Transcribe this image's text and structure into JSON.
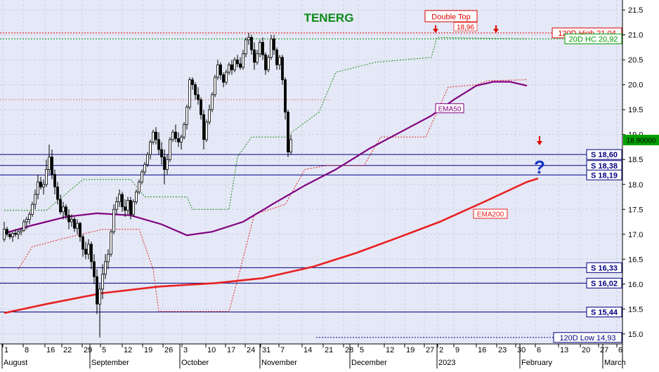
{
  "chart_data": {
    "type": "candlestick",
    "title": "TENERG",
    "last_price_label": "18.90000",
    "y_axis": {
      "min": 14.8,
      "max": 21.7,
      "ticks": [
        "15.0",
        "15.5",
        "16.0",
        "16.5",
        "17.0",
        "17.5",
        "18.0",
        "18.5",
        "19.0",
        "19.5",
        "20.0",
        "20.5",
        "21.0",
        "21.5"
      ]
    },
    "x_axis": {
      "tick_labels": [
        "1",
        "8",
        "16",
        "22",
        "29",
        "5",
        "12",
        "19",
        "26",
        "3",
        "10",
        "17",
        "24",
        "31",
        "7",
        "14",
        "21",
        "28",
        "5",
        "12",
        "19",
        "27",
        "2",
        "9",
        "16",
        "23",
        "30",
        "6",
        "13",
        "20",
        "27",
        "6"
      ],
      "month_labels": [
        "August",
        "September",
        "October",
        "November",
        "December",
        "2023",
        "February",
        "March"
      ]
    },
    "levels": [
      {
        "label": "120D High 21,04",
        "value": 21.04,
        "style": "dotted",
        "color": "#dd0000"
      },
      {
        "label": "20D HC 20,92",
        "value": 20.92,
        "style": "dotted",
        "color": "#009900"
      },
      {
        "label": "S 18,60",
        "value": 18.6,
        "style": "solid",
        "color": "#000080"
      },
      {
        "label": "S 18,38",
        "value": 18.38,
        "style": "solid",
        "color": "#000080"
      },
      {
        "label": "S 18,19",
        "value": 18.19,
        "style": "solid",
        "color": "#000080"
      },
      {
        "label": "S 16,33",
        "value": 16.33,
        "style": "solid",
        "color": "#000080"
      },
      {
        "label": "S 16,02",
        "value": 16.02,
        "style": "solid",
        "color": "#000080"
      },
      {
        "label": "S 15,44",
        "value": 15.44,
        "style": "solid",
        "color": "#000080"
      },
      {
        "label": "120D Low 14,93",
        "value": 14.93,
        "style": "dotted",
        "color": "#000080"
      }
    ],
    "annotations": {
      "double_top_label": "Double Top",
      "double_top_value": "18,96",
      "ema50_label": "EMA50",
      "ema200_label": "EMA200",
      "question_mark": "?"
    },
    "series": [
      {
        "name": "EMA50",
        "color": "#800080",
        "values": [
          [
            0,
            17.02
          ],
          [
            10,
            17.18
          ],
          [
            22,
            17.35
          ],
          [
            33,
            17.42
          ],
          [
            45,
            17.38
          ],
          [
            56,
            17.2
          ],
          [
            65,
            16.98
          ],
          [
            74,
            17.05
          ],
          [
            85,
            17.25
          ],
          [
            96,
            17.62
          ],
          [
            107,
            17.98
          ],
          [
            118,
            18.3
          ],
          [
            130,
            18.72
          ],
          [
            141,
            19.05
          ],
          [
            152,
            19.38
          ],
          [
            160,
            19.7
          ],
          [
            168,
            19.98
          ],
          [
            174,
            20.06
          ],
          [
            180,
            20.06
          ],
          [
            183,
            20.02
          ],
          [
            186,
            19.98
          ]
        ]
      },
      {
        "name": "EMA200",
        "color": "#e82020",
        "values": [
          [
            0,
            15.42
          ],
          [
            15,
            15.6
          ],
          [
            35,
            15.82
          ],
          [
            55,
            15.95
          ],
          [
            75,
            16.02
          ],
          [
            92,
            16.12
          ],
          [
            110,
            16.35
          ],
          [
            125,
            16.62
          ],
          [
            140,
            16.93
          ],
          [
            155,
            17.25
          ],
          [
            170,
            17.63
          ],
          [
            186,
            18.05
          ],
          [
            190,
            18.12
          ]
        ]
      }
    ],
    "trail_green": [
      [
        0,
        17.48
      ],
      [
        15,
        17.48
      ],
      [
        28,
        18.1
      ],
      [
        45,
        18.1
      ],
      [
        50,
        17.75
      ],
      [
        65,
        17.75
      ],
      [
        67,
        17.5
      ],
      [
        80,
        17.5
      ],
      [
        83,
        18.55
      ],
      [
        88,
        18.95
      ],
      [
        100,
        18.95
      ],
      [
        112,
        19.45
      ],
      [
        118,
        20.25
      ],
      [
        132,
        20.45
      ],
      [
        152,
        20.55
      ],
      [
        154,
        20.95
      ],
      [
        186,
        20.92
      ]
    ],
    "trail_red": [
      [
        5,
        16.3
      ],
      [
        10,
        16.75
      ],
      [
        20,
        16.9
      ],
      [
        35,
        17.1
      ],
      [
        48,
        17.1
      ],
      [
        53,
        16.3
      ],
      [
        55,
        15.45
      ],
      [
        80,
        15.45
      ],
      [
        84,
        16.3
      ],
      [
        89,
        17.4
      ],
      [
        100,
        17.6
      ],
      [
        107,
        18.3
      ],
      [
        115,
        18.38
      ],
      [
        128,
        18.38
      ],
      [
        134,
        18.95
      ],
      [
        150,
        18.95
      ],
      [
        158,
        19.95
      ],
      [
        168,
        20.0
      ],
      [
        172,
        20.08
      ],
      [
        186,
        20.1
      ]
    ],
    "candles": [
      [
        16.9,
        17.25,
        16.85,
        17.1
      ],
      [
        17.1,
        17.15,
        16.95,
        17.0
      ],
      [
        17.0,
        17.05,
        16.9,
        16.95
      ],
      [
        16.95,
        17.05,
        16.85,
        17.02
      ],
      [
        17.02,
        17.1,
        16.95,
        17.0
      ],
      [
        17.0,
        17.1,
        16.9,
        17.05
      ],
      [
        17.05,
        17.12,
        16.98,
        17.08
      ],
      [
        17.08,
        17.3,
        17.05,
        17.25
      ],
      [
        17.25,
        17.35,
        17.1,
        17.3
      ],
      [
        17.3,
        17.45,
        17.2,
        17.4
      ],
      [
        17.4,
        17.65,
        17.35,
        17.6
      ],
      [
        17.6,
        17.9,
        17.5,
        17.8
      ],
      [
        17.8,
        18.2,
        17.7,
        18.05
      ],
      [
        18.05,
        18.15,
        17.9,
        17.95
      ],
      [
        17.95,
        18.1,
        17.8,
        18.0
      ],
      [
        18.0,
        18.5,
        17.95,
        18.3
      ],
      [
        18.3,
        18.8,
        18.2,
        18.55
      ],
      [
        18.55,
        18.7,
        18.1,
        18.2
      ],
      [
        18.2,
        18.3,
        17.8,
        17.95
      ],
      [
        17.95,
        18.05,
        17.6,
        17.7
      ],
      [
        17.7,
        17.8,
        17.4,
        17.45
      ],
      [
        17.45,
        17.65,
        17.3,
        17.55
      ],
      [
        17.55,
        17.6,
        17.3,
        17.38
      ],
      [
        17.38,
        17.5,
        17.1,
        17.25
      ],
      [
        17.25,
        17.4,
        17.15,
        17.3
      ],
      [
        17.3,
        17.35,
        17.05,
        17.12
      ],
      [
        17.12,
        17.3,
        17.0,
        17.22
      ],
      [
        17.22,
        17.25,
        16.85,
        16.95
      ],
      [
        16.95,
        17.0,
        16.55,
        16.7
      ],
      [
        16.7,
        16.85,
        16.5,
        16.6
      ],
      [
        16.6,
        16.9,
        16.5,
        16.8
      ],
      [
        16.8,
        16.85,
        16.3,
        16.45
      ],
      [
        16.45,
        16.6,
        16.0,
        16.15
      ],
      [
        16.15,
        16.3,
        15.4,
        15.6
      ],
      [
        15.6,
        16.0,
        14.93,
        15.9
      ],
      [
        15.9,
        16.4,
        15.7,
        16.2
      ],
      [
        16.2,
        16.6,
        16.1,
        16.45
      ],
      [
        16.45,
        16.7,
        16.3,
        16.6
      ],
      [
        16.6,
        17.1,
        16.55,
        17.05
      ],
      [
        17.05,
        17.6,
        17.0,
        17.5
      ],
      [
        17.5,
        17.75,
        17.4,
        17.65
      ],
      [
        17.65,
        17.9,
        17.55,
        17.8
      ],
      [
        17.8,
        17.85,
        17.45,
        17.55
      ],
      [
        17.55,
        17.7,
        17.35,
        17.48
      ],
      [
        17.48,
        17.75,
        17.4,
        17.68
      ],
      [
        17.68,
        17.75,
        17.3,
        17.4
      ],
      [
        17.4,
        17.7,
        17.35,
        17.65
      ],
      [
        17.65,
        17.9,
        17.6,
        17.85
      ],
      [
        17.85,
        18.1,
        17.8,
        18.05
      ],
      [
        18.05,
        18.3,
        18.0,
        18.25
      ],
      [
        18.25,
        18.45,
        18.2,
        18.4
      ],
      [
        18.4,
        18.65,
        18.35,
        18.6
      ],
      [
        18.6,
        18.9,
        18.5,
        18.85
      ],
      [
        18.85,
        19.1,
        18.8,
        19.05
      ],
      [
        19.05,
        19.15,
        18.8,
        18.9
      ],
      [
        18.9,
        19.05,
        18.6,
        18.7
      ],
      [
        18.7,
        18.85,
        18.4,
        18.55
      ],
      [
        18.55,
        18.7,
        18.0,
        18.3
      ],
      [
        18.3,
        18.6,
        18.2,
        18.5
      ],
      [
        18.5,
        18.95,
        18.45,
        18.9
      ],
      [
        18.9,
        19.1,
        18.85,
        19.05
      ],
      [
        19.05,
        19.2,
        18.85,
        18.92
      ],
      [
        18.92,
        19.05,
        18.75,
        18.85
      ],
      [
        18.85,
        19.0,
        18.7,
        18.95
      ],
      [
        18.95,
        19.25,
        18.9,
        19.2
      ],
      [
        19.2,
        19.6,
        19.1,
        19.55
      ],
      [
        19.55,
        20.15,
        19.5,
        20.1
      ],
      [
        20.1,
        20.15,
        19.9,
        20.0
      ],
      [
        20.0,
        20.05,
        19.7,
        19.8
      ],
      [
        19.8,
        19.95,
        19.6,
        19.7
      ],
      [
        19.7,
        19.75,
        19.3,
        19.4
      ],
      [
        19.4,
        19.5,
        18.7,
        18.9
      ],
      [
        18.9,
        19.3,
        18.85,
        19.25
      ],
      [
        19.25,
        19.6,
        19.2,
        19.5
      ],
      [
        19.5,
        19.85,
        19.45,
        19.8
      ],
      [
        19.8,
        20.2,
        19.75,
        20.15
      ],
      [
        20.15,
        20.5,
        20.1,
        20.4
      ],
      [
        20.4,
        20.45,
        20.1,
        20.2
      ],
      [
        20.2,
        20.25,
        19.95,
        20.05
      ],
      [
        20.05,
        20.3,
        20.0,
        20.25
      ],
      [
        20.25,
        20.45,
        20.2,
        20.4
      ],
      [
        20.4,
        20.5,
        20.2,
        20.3
      ],
      [
        20.3,
        20.55,
        20.25,
        20.5
      ],
      [
        20.5,
        20.6,
        20.35,
        20.42
      ],
      [
        20.42,
        20.55,
        20.3,
        20.35
      ],
      [
        20.35,
        20.7,
        20.3,
        20.62
      ],
      [
        20.62,
        20.95,
        20.55,
        20.9
      ],
      [
        20.9,
        21.04,
        20.8,
        20.95
      ],
      [
        20.95,
        21.0,
        20.6,
        20.7
      ],
      [
        20.7,
        20.85,
        20.3,
        20.45
      ],
      [
        20.45,
        20.7,
        20.4,
        20.62
      ],
      [
        20.62,
        20.9,
        20.55,
        20.85
      ],
      [
        20.85,
        20.95,
        20.5,
        20.6
      ],
      [
        20.6,
        20.65,
        20.2,
        20.3
      ],
      [
        20.3,
        20.6,
        20.25,
        20.55
      ],
      [
        20.55,
        21.0,
        20.5,
        20.92
      ],
      [
        20.92,
        21.0,
        20.6,
        20.7
      ],
      [
        20.7,
        20.75,
        20.3,
        20.4
      ],
      [
        20.4,
        20.6,
        20.3,
        20.55
      ],
      [
        20.55,
        20.6,
        20.0,
        20.1
      ],
      [
        20.1,
        20.15,
        19.3,
        19.45
      ],
      [
        19.45,
        19.5,
        18.55,
        18.65
      ],
      [
        18.65,
        19.0,
        18.6,
        18.9
      ]
    ]
  }
}
